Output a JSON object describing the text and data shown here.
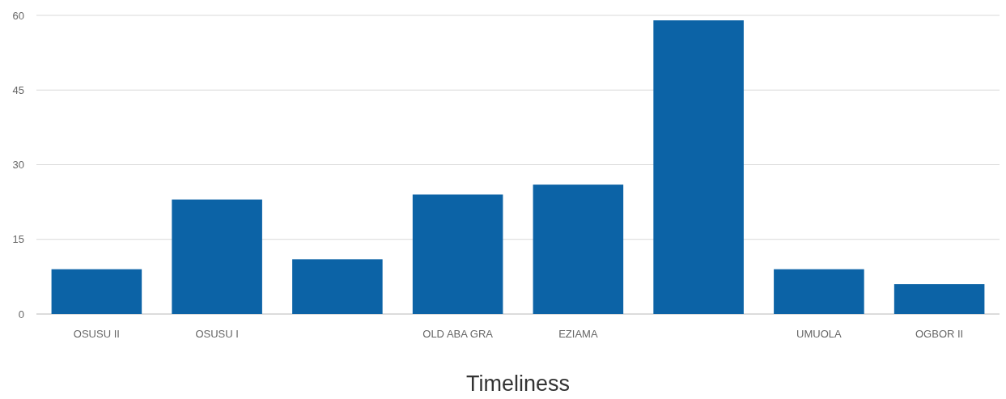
{
  "chart_data": {
    "type": "bar",
    "xlabel": "Timeliness",
    "categories": [
      "OSUSU II",
      "OSUSU I",
      null,
      "OLD ABA GRA",
      "EZIAMA",
      null,
      "UMUOLA",
      "OGBOR II"
    ],
    "values": [
      9,
      23,
      11,
      24,
      26,
      59,
      9,
      6
    ],
    "color": "#0c63a6",
    "ylim": [
      0,
      60
    ],
    "yticks": [
      0,
      15,
      30,
      45,
      60
    ],
    "grid": "y"
  }
}
